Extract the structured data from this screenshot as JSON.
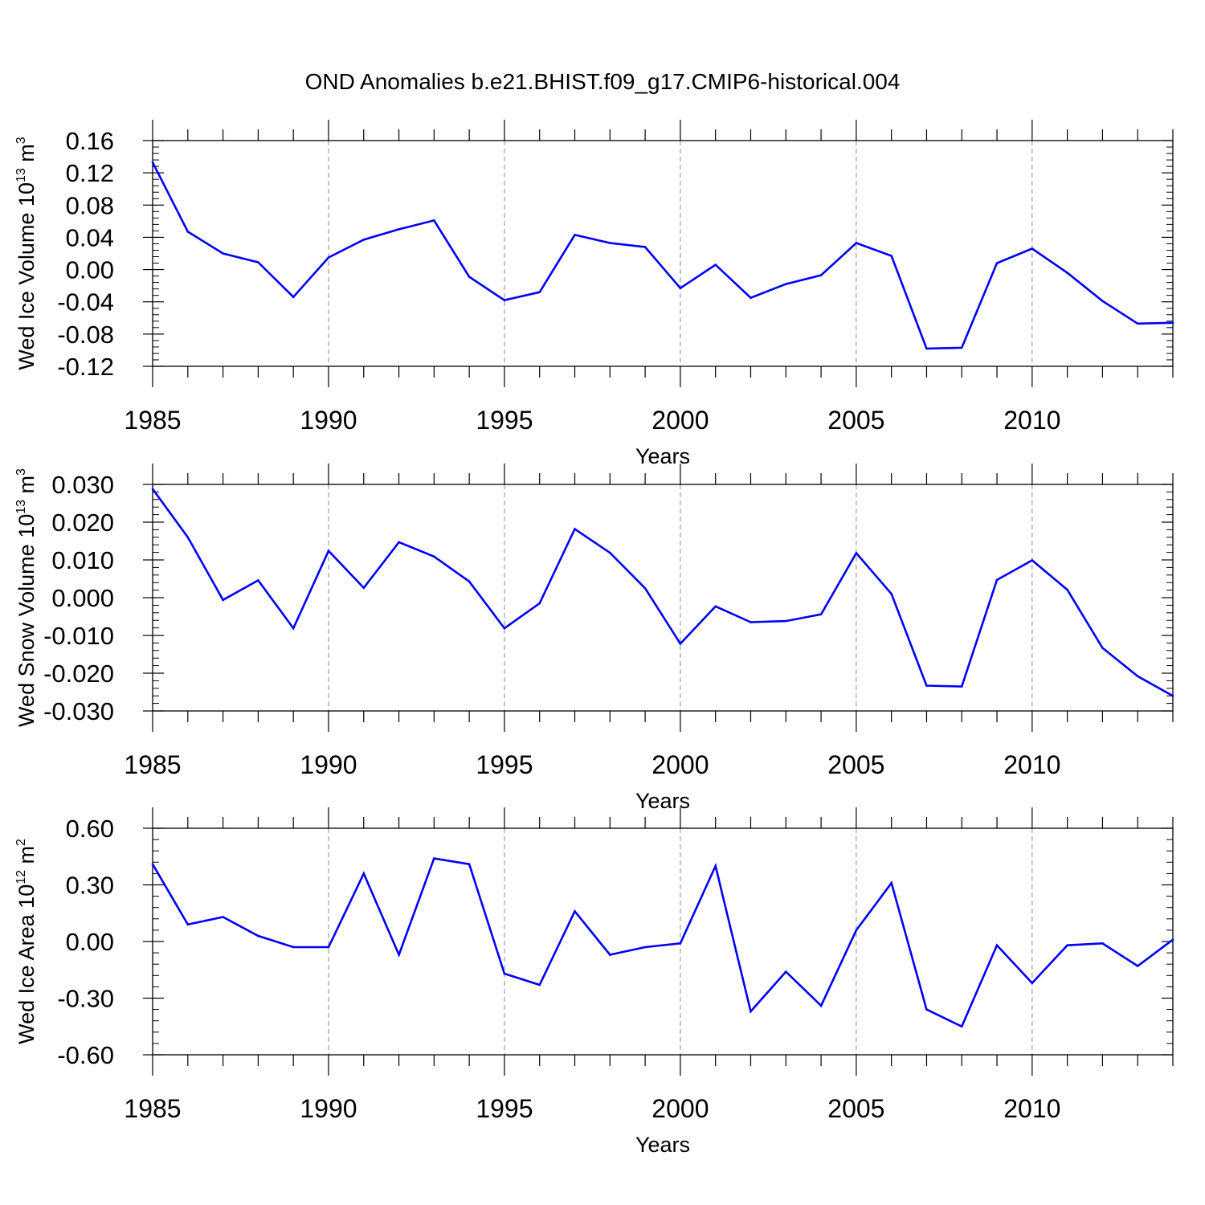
{
  "title": "OND Anomalies b.e21.BHIST.f09_g17.CMIP6-historical.004",
  "line_color": "#0000ff",
  "chart_data": [
    {
      "type": "line",
      "ylabel": "Wed Ice Volume 10",
      "ylabel_exp": "13",
      "ylabel_unit": " m",
      "ylabel_unit_exp": "3",
      "xlabel": "Years",
      "xlim": [
        1985,
        2014
      ],
      "ylim": [
        -0.12,
        0.16
      ],
      "yticks": [
        -0.12,
        -0.08,
        -0.04,
        0.0,
        0.04,
        0.08,
        0.12,
        0.16
      ],
      "ytick_labels": [
        "-0.12",
        "-0.08",
        "-0.04",
        "0.00",
        "0.04",
        "0.08",
        "0.12",
        "0.16"
      ],
      "xticks": [
        1985,
        1990,
        1995,
        2000,
        2005,
        2010
      ],
      "xtick_labels": [
        "1985",
        "1990",
        "1995",
        "2000",
        "2005",
        "2010"
      ],
      "grid": "vertical dashed at major x ticks",
      "x": [
        1985,
        1986,
        1987,
        1988,
        1989,
        1990,
        1991,
        1992,
        1993,
        1994,
        1995,
        1996,
        1997,
        1998,
        1999,
        2000,
        2001,
        2002,
        2003,
        2004,
        2005,
        2006,
        2007,
        2008,
        2009,
        2010,
        2011,
        2012,
        2013,
        2014
      ],
      "values": [
        0.133,
        0.047,
        0.02,
        0.009,
        -0.034,
        0.015,
        0.037,
        0.05,
        0.061,
        -0.009,
        -0.038,
        -0.028,
        0.043,
        0.033,
        0.028,
        -0.023,
        0.006,
        -0.035,
        -0.018,
        -0.007,
        0.033,
        0.017,
        -0.098,
        -0.097,
        0.008,
        0.026,
        -0.004,
        -0.039,
        -0.067,
        -0.066
      ]
    },
    {
      "type": "line",
      "ylabel": "Wed Snow Volume 10",
      "ylabel_exp": "13",
      "ylabel_unit": " m",
      "ylabel_unit_exp": "3",
      "xlabel": "Years",
      "xlim": [
        1985,
        2014
      ],
      "ylim": [
        -0.03,
        0.03
      ],
      "yticks": [
        -0.03,
        -0.02,
        -0.01,
        0.0,
        0.01,
        0.02,
        0.03
      ],
      "ytick_labels": [
        "-0.030",
        "-0.020",
        "-0.010",
        "0.000",
        "0.010",
        "0.020",
        "0.030"
      ],
      "xticks": [
        1985,
        1990,
        1995,
        2000,
        2005,
        2010
      ],
      "xtick_labels": [
        "1985",
        "1990",
        "1995",
        "2000",
        "2005",
        "2010"
      ],
      "grid": "vertical dashed at major x ticks",
      "x": [
        1985,
        1986,
        1987,
        1988,
        1989,
        1990,
        1991,
        1992,
        1993,
        1994,
        1995,
        1996,
        1997,
        1998,
        1999,
        2000,
        2001,
        2002,
        2003,
        2004,
        2005,
        2006,
        2007,
        2008,
        2009,
        2010,
        2011,
        2012,
        2013,
        2014
      ],
      "values": [
        0.0288,
        0.016,
        -0.0006,
        0.0046,
        -0.0081,
        0.0124,
        0.0026,
        0.0147,
        0.0109,
        0.0043,
        -0.0081,
        -0.0015,
        0.0182,
        0.0119,
        0.0025,
        -0.0122,
        -0.0023,
        -0.0065,
        -0.0062,
        -0.0044,
        0.0118,
        0.001,
        -0.0233,
        -0.0235,
        0.0047,
        0.0099,
        0.0021,
        -0.0133,
        -0.0208,
        -0.026
      ]
    },
    {
      "type": "line",
      "ylabel": "Wed Ice Area 10",
      "ylabel_exp": "12",
      "ylabel_unit": " m",
      "ylabel_unit_exp": "2",
      "xlabel": "Years",
      "xlim": [
        1985,
        2014
      ],
      "ylim": [
        -0.6,
        0.6
      ],
      "yticks": [
        -0.6,
        -0.3,
        0.0,
        0.3,
        0.6
      ],
      "ytick_labels": [
        "-0.60",
        "-0.30",
        "0.00",
        "0.30",
        "0.60"
      ],
      "xticks": [
        1985,
        1990,
        1995,
        2000,
        2005,
        2010
      ],
      "xtick_labels": [
        "1985",
        "1990",
        "1995",
        "2000",
        "2005",
        "2010"
      ],
      "grid": "vertical dashed at major x ticks",
      "x": [
        1985,
        1986,
        1987,
        1988,
        1989,
        1990,
        1991,
        1992,
        1993,
        1994,
        1995,
        1996,
        1997,
        1998,
        1999,
        2000,
        2001,
        2002,
        2003,
        2004,
        2005,
        2006,
        2007,
        2008,
        2009,
        2010,
        2011,
        2012,
        2013,
        2014
      ],
      "values": [
        0.41,
        0.09,
        0.13,
        0.03,
        -0.03,
        -0.03,
        0.36,
        -0.07,
        0.44,
        0.41,
        -0.17,
        -0.23,
        0.16,
        -0.07,
        -0.03,
        -0.01,
        0.4,
        -0.37,
        -0.16,
        -0.34,
        0.06,
        0.31,
        -0.36,
        -0.45,
        -0.02,
        -0.22,
        -0.02,
        -0.01,
        -0.13,
        0.01
      ]
    }
  ]
}
